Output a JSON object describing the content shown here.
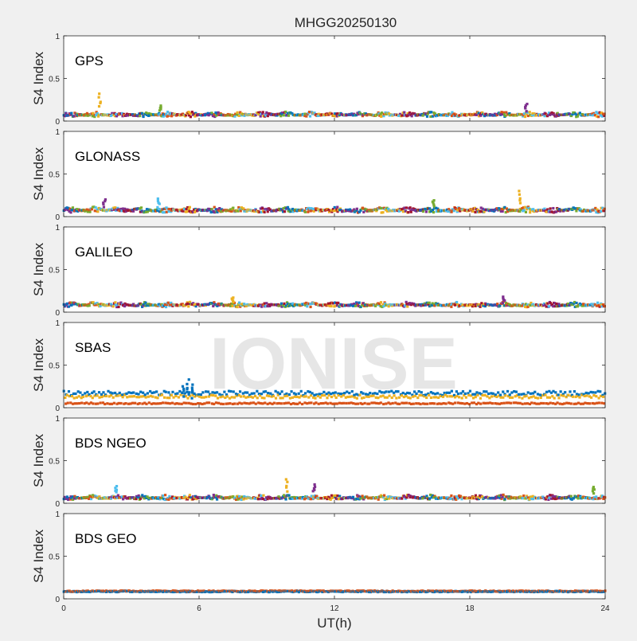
{
  "figure": {
    "title": "MHGG20250130",
    "xlabel": "UT(h)",
    "watermark": "IONISE",
    "xticks": [
      "0",
      "6",
      "12",
      "18",
      "24"
    ],
    "xlim": [
      0,
      24
    ]
  },
  "chart_data": [
    {
      "type": "scatter",
      "label": "GPS",
      "ylabel": "S4 Index",
      "ylim": [
        0,
        1
      ],
      "yticks": [
        "0",
        "0.5",
        "1"
      ],
      "baseline": 0.07,
      "spread": 0.03,
      "colors": [
        "#0072BD",
        "#D95319",
        "#EDB120",
        "#7E2F8E",
        "#77AC30",
        "#4DBEEE",
        "#A2142F"
      ],
      "spikes": [
        {
          "x": 1.6,
          "y": 0.32
        },
        {
          "x": 20.5,
          "y": 0.2
        },
        {
          "x": 4.3,
          "y": 0.18
        }
      ],
      "seed": 11
    },
    {
      "type": "scatter",
      "label": "GLONASS",
      "ylabel": "S4 Index",
      "ylim": [
        0,
        1
      ],
      "yticks": [
        "0",
        "0.5",
        "1"
      ],
      "baseline": 0.07,
      "spread": 0.035,
      "colors": [
        "#0072BD",
        "#D95319",
        "#EDB120",
        "#7E2F8E",
        "#77AC30",
        "#4DBEEE",
        "#A2142F"
      ],
      "spikes": [
        {
          "x": 20.2,
          "y": 0.3
        },
        {
          "x": 1.8,
          "y": 0.2
        },
        {
          "x": 16.4,
          "y": 0.19
        },
        {
          "x": 4.2,
          "y": 0.21
        }
      ],
      "seed": 23
    },
    {
      "type": "scatter",
      "label": "GALILEO",
      "ylabel": "S4 Index",
      "ylim": [
        0,
        1
      ],
      "yticks": [
        "0",
        "0.5",
        "1"
      ],
      "baseline": 0.08,
      "spread": 0.03,
      "colors": [
        "#0072BD",
        "#D95319",
        "#EDB120",
        "#7E2F8E",
        "#77AC30",
        "#4DBEEE",
        "#A2142F"
      ],
      "spikes": [
        {
          "x": 7.5,
          "y": 0.17
        },
        {
          "x": 19.5,
          "y": 0.18
        }
      ],
      "seed": 37
    },
    {
      "type": "scatter",
      "label": "SBAS",
      "ylabel": "S4 Index",
      "ylim": [
        0,
        1
      ],
      "yticks": [
        "0",
        "0.5",
        "1"
      ],
      "bands": [
        {
          "color": "#0072BD",
          "y": 0.17,
          "spread": 0.025
        },
        {
          "color": "#EDB120",
          "y": 0.13,
          "spread": 0.02
        },
        {
          "color": "#D95319",
          "y": 0.05,
          "spread": 0.008
        }
      ],
      "spikes": [
        {
          "x": 5.5,
          "y": 0.33
        },
        {
          "x": 5.7,
          "y": 0.27
        },
        {
          "x": 5.3,
          "y": 0.25
        }
      ],
      "seed": 41
    },
    {
      "type": "scatter",
      "label": "BDS NGEO",
      "ylabel": "S4 Index",
      "ylim": [
        0,
        1
      ],
      "yticks": [
        "0",
        "0.5",
        "1"
      ],
      "baseline": 0.06,
      "spread": 0.03,
      "colors": [
        "#0072BD",
        "#D95319",
        "#EDB120",
        "#7E2F8E",
        "#77AC30",
        "#4DBEEE",
        "#A2142F"
      ],
      "spikes": [
        {
          "x": 9.9,
          "y": 0.28
        },
        {
          "x": 11.1,
          "y": 0.22
        },
        {
          "x": 23.5,
          "y": 0.19
        },
        {
          "x": 2.3,
          "y": 0.2
        }
      ],
      "seed": 53
    },
    {
      "type": "scatter",
      "label": "BDS GEO",
      "ylabel": "S4 Index",
      "ylim": [
        0,
        1
      ],
      "yticks": [
        "0",
        "0.5",
        "1"
      ],
      "bands": [
        {
          "color": "#0072BD",
          "y": 0.085,
          "spread": 0.006
        },
        {
          "color": "#D95319",
          "y": 0.09,
          "spread": 0.006
        }
      ],
      "spikes": [],
      "seed": 67
    }
  ]
}
